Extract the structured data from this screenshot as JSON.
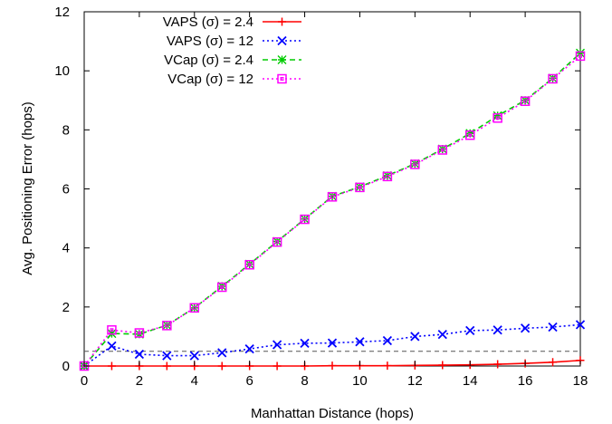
{
  "chart_data": {
    "type": "line",
    "xlabel": "Manhattan Distance (hops)",
    "ylabel": "Avg. Positioning Error (hops)",
    "xlim": [
      0,
      18
    ],
    "ylim": [
      0,
      12
    ],
    "xticks": [
      "0",
      "2",
      "4",
      "6",
      "8",
      "10",
      "12",
      "14",
      "16",
      "18"
    ],
    "yticks": [
      "0",
      "2",
      "4",
      "6",
      "8",
      "10",
      "12"
    ],
    "grid": false,
    "legend_position": "top-left",
    "x": [
      0,
      1,
      2,
      3,
      4,
      5,
      6,
      7,
      8,
      9,
      10,
      11,
      12,
      13,
      14,
      15,
      16,
      17,
      18
    ],
    "series": [
      {
        "name": "VAPS (σ) = 2.4",
        "color": "#ff0000",
        "marker": "plus",
        "dash": "solid",
        "values": [
          0,
          0,
          0,
          0,
          0,
          0,
          0,
          0,
          0,
          0.01,
          0.01,
          0.01,
          0.02,
          0.03,
          0.04,
          0.06,
          0.09,
          0.13,
          0.19
        ]
      },
      {
        "name": "VAPS (σ) = 12",
        "color": "#0000ff",
        "marker": "cross",
        "dash": "dotted",
        "values": [
          0,
          0.68,
          0.4,
          0.35,
          0.35,
          0.45,
          0.58,
          0.72,
          0.77,
          0.78,
          0.82,
          0.86,
          1.0,
          1.07,
          1.2,
          1.22,
          1.28,
          1.32,
          1.4
        ]
      },
      {
        "name": "VCap (σ) = 2.4",
        "color": "#00cc00",
        "marker": "star",
        "dash": "dashed",
        "values": [
          0,
          1.1,
          1.08,
          1.38,
          1.97,
          2.7,
          3.45,
          4.22,
          4.98,
          5.75,
          6.07,
          6.45,
          6.85,
          7.35,
          7.88,
          8.48,
          9.0,
          9.75,
          10.6
        ]
      },
      {
        "name": "VCap (σ) = 12",
        "color": "#ff00ff",
        "marker": "square",
        "dash": "dotted",
        "values": [
          0,
          1.22,
          1.12,
          1.37,
          1.97,
          2.67,
          3.43,
          4.2,
          4.97,
          5.73,
          6.05,
          6.42,
          6.83,
          7.32,
          7.82,
          8.4,
          8.97,
          9.73,
          10.5
        ]
      }
    ],
    "reference_line": {
      "y": 0.5,
      "color": "#555555",
      "dash": "dashed"
    }
  }
}
